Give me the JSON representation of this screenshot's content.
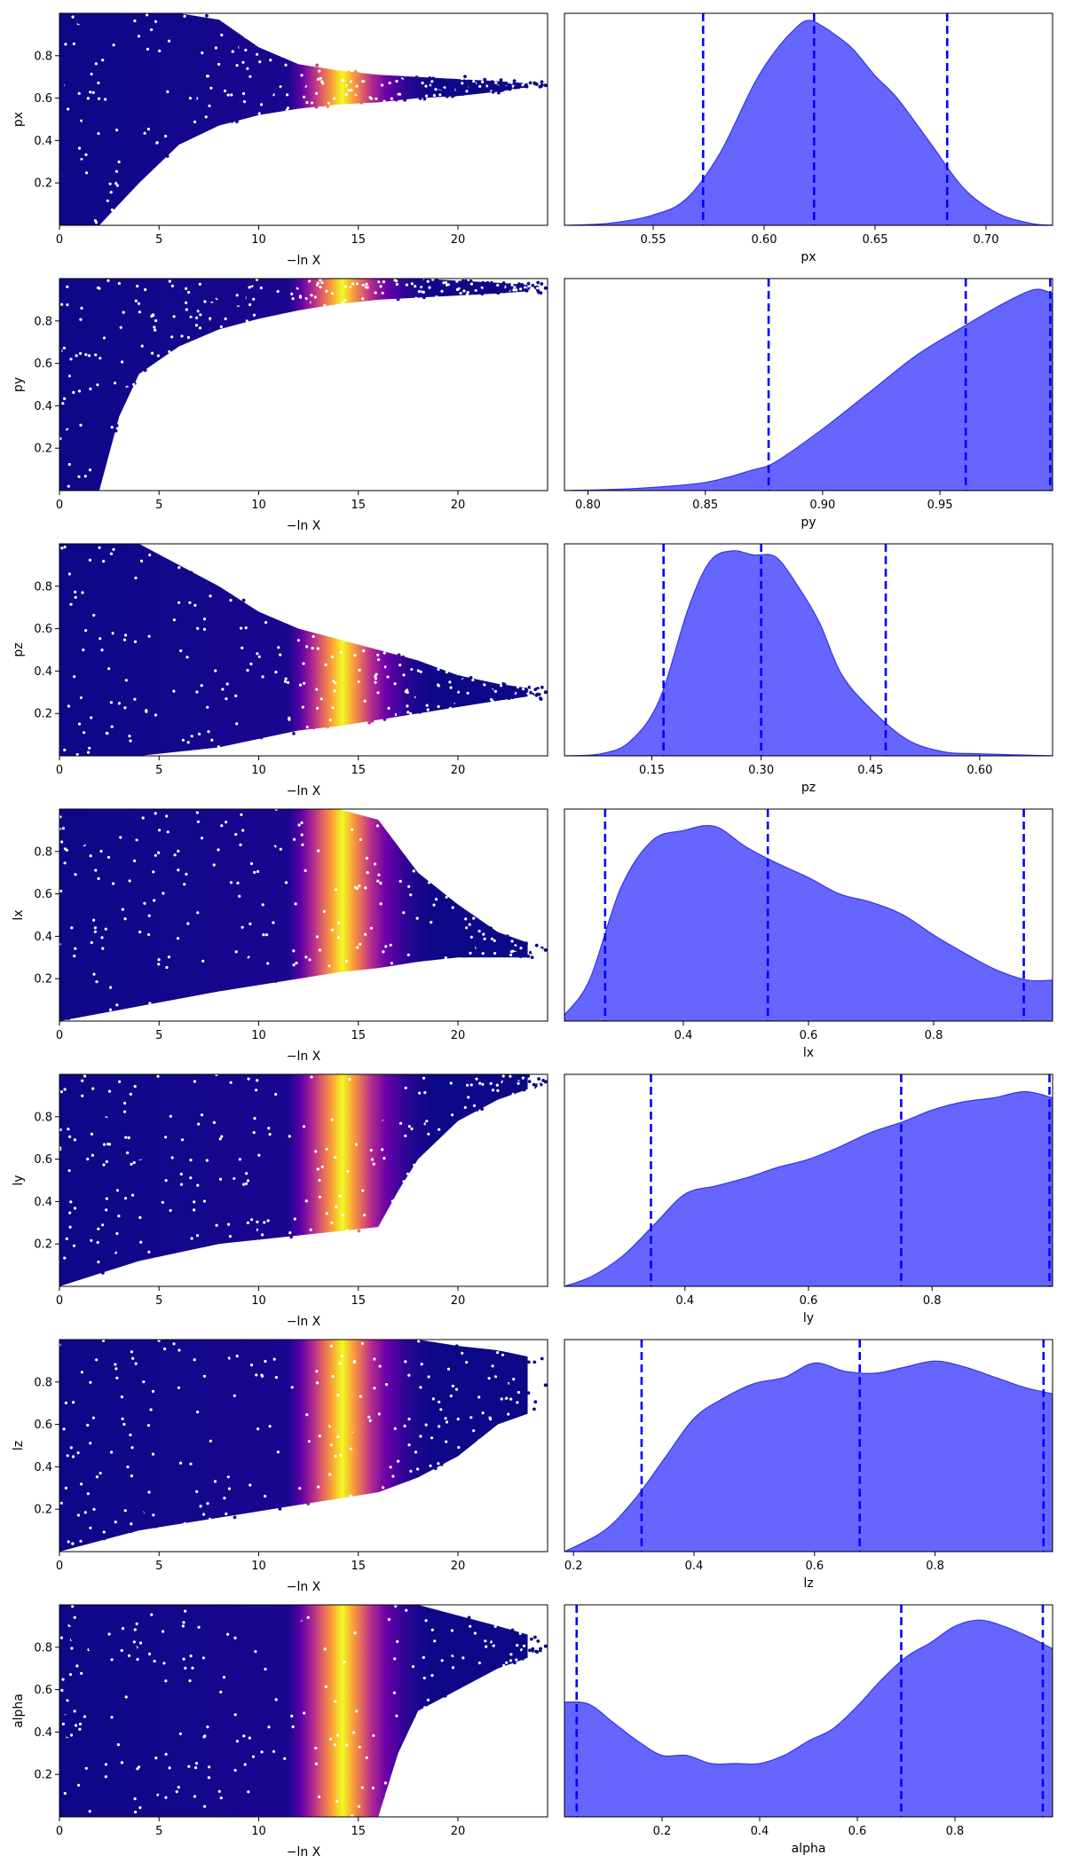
{
  "chart_data": [
    {
      "type": "scatter",
      "param": "px",
      "trace": {
        "xlabel": "−ln X",
        "ylabel": "px",
        "xlim": [
          0,
          24.5
        ],
        "ylim": [
          0,
          1
        ],
        "xticks": [
          0,
          5,
          10,
          15,
          20
        ],
        "yticks": [
          0.2,
          0.4,
          0.6,
          0.8
        ],
        "envelope": [
          [
            0,
            0.0,
            1.0
          ],
          [
            2,
            0.0,
            1.0
          ],
          [
            4,
            0.2,
            1.0
          ],
          [
            6,
            0.38,
            1.0
          ],
          [
            8,
            0.47,
            0.97
          ],
          [
            10,
            0.52,
            0.84
          ],
          [
            12,
            0.55,
            0.76
          ],
          [
            14,
            0.57,
            0.73
          ],
          [
            16,
            0.58,
            0.71
          ],
          [
            18,
            0.6,
            0.7
          ],
          [
            20,
            0.61,
            0.69
          ],
          [
            22,
            0.63,
            0.68
          ],
          [
            23.5,
            0.65,
            0.67
          ]
        ],
        "colormap": "plasma",
        "peak_x": 14.2,
        "max_x": 24.4
      },
      "marginal": {
        "type": "area",
        "xlabel": "px",
        "xlim": [
          0.51,
          0.73
        ],
        "xticks": [
          0.55,
          0.6,
          0.65,
          0.7
        ],
        "xtick_labels": [
          "0.55",
          "0.60",
          "0.65",
          "0.70"
        ],
        "density": [
          [
            0.51,
            0.0
          ],
          [
            0.53,
            0.01
          ],
          [
            0.55,
            0.05
          ],
          [
            0.565,
            0.13
          ],
          [
            0.58,
            0.35
          ],
          [
            0.595,
            0.68
          ],
          [
            0.605,
            0.85
          ],
          [
            0.615,
            0.97
          ],
          [
            0.62,
            1.0
          ],
          [
            0.625,
            0.98
          ],
          [
            0.632,
            0.93
          ],
          [
            0.64,
            0.86
          ],
          [
            0.65,
            0.73
          ],
          [
            0.66,
            0.62
          ],
          [
            0.675,
            0.4
          ],
          [
            0.69,
            0.18
          ],
          [
            0.705,
            0.06
          ],
          [
            0.72,
            0.01
          ],
          [
            0.73,
            0.0
          ]
        ],
        "quantiles": [
          0.5725,
          0.6225,
          0.6825
        ]
      }
    },
    {
      "type": "scatter",
      "param": "py",
      "trace": {
        "xlabel": "−ln X",
        "ylabel": "py",
        "xlim": [
          0,
          24.5
        ],
        "ylim": [
          0,
          1
        ],
        "xticks": [
          0,
          5,
          10,
          15,
          20
        ],
        "yticks": [
          0.2,
          0.4,
          0.6,
          0.8
        ],
        "envelope": [
          [
            0,
            0.0,
            1.0
          ],
          [
            2,
            0.0,
            1.0
          ],
          [
            3,
            0.35,
            1.0
          ],
          [
            4,
            0.55,
            1.0
          ],
          [
            6,
            0.68,
            1.0
          ],
          [
            8,
            0.76,
            1.0
          ],
          [
            10,
            0.81,
            1.0
          ],
          [
            12,
            0.85,
            1.0
          ],
          [
            14,
            0.88,
            1.0
          ],
          [
            16,
            0.9,
            1.0
          ],
          [
            18,
            0.91,
            1.0
          ],
          [
            20,
            0.92,
            0.99
          ],
          [
            22,
            0.93,
            0.98
          ],
          [
            23.5,
            0.94,
            0.97
          ]
        ],
        "colormap": "plasma",
        "peak_x": 14.2,
        "max_x": 24.4
      },
      "marginal": {
        "type": "area",
        "xlabel": "py",
        "xlim": [
          0.79,
          0.998
        ],
        "xticks": [
          0.8,
          0.85,
          0.9,
          0.95
        ],
        "xtick_labels": [
          "0.80",
          "0.85",
          "0.90",
          "0.95"
        ],
        "density": [
          [
            0.79,
            0.0
          ],
          [
            0.82,
            0.01
          ],
          [
            0.85,
            0.04
          ],
          [
            0.87,
            0.1
          ],
          [
            0.88,
            0.14
          ],
          [
            0.9,
            0.3
          ],
          [
            0.92,
            0.48
          ],
          [
            0.94,
            0.66
          ],
          [
            0.96,
            0.8
          ],
          [
            0.975,
            0.9
          ],
          [
            0.99,
            0.98
          ],
          [
            0.998,
            0.96
          ]
        ],
        "quantiles": [
          0.877,
          0.961,
          0.997
        ]
      }
    },
    {
      "type": "scatter",
      "param": "pz",
      "trace": {
        "xlabel": "−ln X",
        "ylabel": "pz",
        "xlim": [
          0,
          24.5
        ],
        "ylim": [
          0,
          1
        ],
        "xticks": [
          0,
          5,
          10,
          15,
          20
        ],
        "yticks": [
          0.2,
          0.4,
          0.6,
          0.8
        ],
        "envelope": [
          [
            0,
            0.0,
            1.0
          ],
          [
            4,
            0.0,
            1.0
          ],
          [
            8,
            0.04,
            0.8
          ],
          [
            10,
            0.08,
            0.68
          ],
          [
            12,
            0.12,
            0.6
          ],
          [
            14,
            0.14,
            0.55
          ],
          [
            16,
            0.17,
            0.5
          ],
          [
            18,
            0.2,
            0.45
          ],
          [
            20,
            0.23,
            0.38
          ],
          [
            22,
            0.26,
            0.34
          ],
          [
            23.5,
            0.28,
            0.32
          ]
        ],
        "colormap": "plasma",
        "peak_x": 14.2,
        "max_x": 24.4
      },
      "marginal": {
        "type": "area",
        "xlabel": "pz",
        "xlim": [
          0.03,
          0.7
        ],
        "xticks": [
          0.15,
          0.3,
          0.45,
          0.6
        ],
        "xtick_labels": [
          "0.15",
          "0.30",
          "0.45",
          "0.60"
        ],
        "density": [
          [
            0.03,
            0.0
          ],
          [
            0.08,
            0.01
          ],
          [
            0.12,
            0.07
          ],
          [
            0.16,
            0.27
          ],
          [
            0.2,
            0.72
          ],
          [
            0.23,
            0.95
          ],
          [
            0.26,
            1.0
          ],
          [
            0.29,
            0.98
          ],
          [
            0.32,
            0.97
          ],
          [
            0.35,
            0.83
          ],
          [
            0.38,
            0.65
          ],
          [
            0.41,
            0.4
          ],
          [
            0.45,
            0.23
          ],
          [
            0.5,
            0.08
          ],
          [
            0.55,
            0.02
          ],
          [
            0.6,
            0.01
          ],
          [
            0.7,
            0.0
          ]
        ],
        "quantiles": [
          0.166,
          0.3,
          0.471
        ]
      }
    },
    {
      "type": "scatter",
      "param": "lx",
      "trace": {
        "xlabel": "−ln X",
        "ylabel": "lx",
        "xlim": [
          0,
          24.5
        ],
        "ylim": [
          0,
          1
        ],
        "xticks": [
          0,
          5,
          10,
          15,
          20
        ],
        "yticks": [
          0.2,
          0.4,
          0.6,
          0.8
        ],
        "envelope": [
          [
            0,
            0.0,
            1.0
          ],
          [
            4,
            0.07,
            1.0
          ],
          [
            8,
            0.14,
            1.0
          ],
          [
            12,
            0.2,
            1.0
          ],
          [
            14,
            0.23,
            1.0
          ],
          [
            16,
            0.25,
            0.95
          ],
          [
            18,
            0.28,
            0.7
          ],
          [
            20,
            0.3,
            0.55
          ],
          [
            22,
            0.3,
            0.42
          ],
          [
            23.5,
            0.3,
            0.37
          ]
        ],
        "colormap": "plasma",
        "peak_x": 14.2,
        "max_x": 24.4
      },
      "marginal": {
        "type": "area",
        "xlabel": "lx",
        "xlim": [
          0.21,
          0.99
        ],
        "xticks": [
          0.4,
          0.6,
          0.8
        ],
        "xtick_labels": [
          "0.4",
          "0.6",
          "0.8"
        ],
        "density": [
          [
            0.21,
            0.03
          ],
          [
            0.25,
            0.2
          ],
          [
            0.3,
            0.65
          ],
          [
            0.35,
            0.88
          ],
          [
            0.4,
            0.93
          ],
          [
            0.45,
            0.95
          ],
          [
            0.5,
            0.85
          ],
          [
            0.55,
            0.77
          ],
          [
            0.6,
            0.7
          ],
          [
            0.65,
            0.62
          ],
          [
            0.7,
            0.58
          ],
          [
            0.75,
            0.52
          ],
          [
            0.8,
            0.42
          ],
          [
            0.85,
            0.33
          ],
          [
            0.9,
            0.25
          ],
          [
            0.95,
            0.2
          ],
          [
            0.99,
            0.2
          ]
        ],
        "quantiles": [
          0.275,
          0.535,
          0.944
        ]
      }
    },
    {
      "type": "scatter",
      "param": "ly",
      "trace": {
        "xlabel": "−ln X",
        "ylabel": "ly",
        "xlim": [
          0,
          24.5
        ],
        "ylim": [
          0,
          1
        ],
        "xticks": [
          0,
          5,
          10,
          15,
          20
        ],
        "yticks": [
          0.2,
          0.4,
          0.6,
          0.8
        ],
        "envelope": [
          [
            0,
            0.0,
            1.0
          ],
          [
            4,
            0.12,
            1.0
          ],
          [
            8,
            0.2,
            1.0
          ],
          [
            12,
            0.24,
            1.0
          ],
          [
            16,
            0.28,
            1.0
          ],
          [
            17,
            0.45,
            1.0
          ],
          [
            18,
            0.6,
            1.0
          ],
          [
            20,
            0.78,
            1.0
          ],
          [
            22,
            0.88,
            1.0
          ],
          [
            23.5,
            0.93,
            1.0
          ]
        ],
        "colormap": "plasma",
        "peak_x": 14.2,
        "max_x": 24.4
      },
      "marginal": {
        "type": "area",
        "xlabel": "ly",
        "xlim": [
          0.205,
          0.995
        ],
        "xticks": [
          0.4,
          0.6,
          0.8
        ],
        "xtick_labels": [
          "0.4",
          "0.6",
          "0.8"
        ],
        "density": [
          [
            0.205,
            0.0
          ],
          [
            0.25,
            0.05
          ],
          [
            0.3,
            0.15
          ],
          [
            0.35,
            0.3
          ],
          [
            0.4,
            0.45
          ],
          [
            0.45,
            0.49
          ],
          [
            0.5,
            0.53
          ],
          [
            0.55,
            0.58
          ],
          [
            0.6,
            0.62
          ],
          [
            0.65,
            0.68
          ],
          [
            0.7,
            0.75
          ],
          [
            0.75,
            0.8
          ],
          [
            0.8,
            0.86
          ],
          [
            0.85,
            0.9
          ],
          [
            0.9,
            0.92
          ],
          [
            0.95,
            0.95
          ],
          [
            0.995,
            0.92
          ]
        ],
        "quantiles": [
          0.345,
          0.75,
          0.99
        ]
      }
    },
    {
      "type": "scatter",
      "param": "lz",
      "trace": {
        "xlabel": "−ln X",
        "ylabel": "lz",
        "xlim": [
          0,
          24.5
        ],
        "ylim": [
          0,
          1
        ],
        "xticks": [
          0,
          5,
          10,
          15,
          20
        ],
        "yticks": [
          0.2,
          0.4,
          0.6,
          0.8
        ],
        "envelope": [
          [
            0,
            0.0,
            1.0
          ],
          [
            4,
            0.1,
            1.0
          ],
          [
            8,
            0.16,
            1.0
          ],
          [
            12,
            0.22,
            1.0
          ],
          [
            16,
            0.28,
            1.0
          ],
          [
            18,
            0.35,
            1.0
          ],
          [
            20,
            0.45,
            0.97
          ],
          [
            22,
            0.6,
            0.95
          ],
          [
            23.5,
            0.65,
            0.92
          ]
        ],
        "colormap": "plasma",
        "peak_x": 14.2,
        "max_x": 24.4
      },
      "marginal": {
        "type": "area",
        "xlabel": "lz",
        "xlim": [
          0.185,
          0.995
        ],
        "xticks": [
          0.2,
          0.4,
          0.6,
          0.8
        ],
        "xtick_labels": [
          "0.2",
          "0.4",
          "0.6",
          "0.8"
        ],
        "density": [
          [
            0.185,
            0.0
          ],
          [
            0.25,
            0.1
          ],
          [
            0.3,
            0.25
          ],
          [
            0.35,
            0.45
          ],
          [
            0.4,
            0.65
          ],
          [
            0.45,
            0.75
          ],
          [
            0.5,
            0.82
          ],
          [
            0.55,
            0.85
          ],
          [
            0.6,
            0.92
          ],
          [
            0.65,
            0.88
          ],
          [
            0.7,
            0.87
          ],
          [
            0.75,
            0.9
          ],
          [
            0.8,
            0.93
          ],
          [
            0.85,
            0.9
          ],
          [
            0.9,
            0.85
          ],
          [
            0.95,
            0.8
          ],
          [
            0.995,
            0.77
          ]
        ],
        "quantiles": [
          0.313,
          0.675,
          0.98
        ]
      }
    },
    {
      "type": "scatter",
      "param": "alpha",
      "trace": {
        "xlabel": "−ln X",
        "ylabel": "alpha",
        "xlim": [
          0,
          24.5
        ],
        "ylim": [
          0,
          1
        ],
        "xticks": [
          0,
          5,
          10,
          15,
          20
        ],
        "yticks": [
          0.2,
          0.4,
          0.6,
          0.8
        ],
        "envelope": [
          [
            0,
            0.0,
            1.0
          ],
          [
            12,
            0.0,
            1.0
          ],
          [
            16,
            0.0,
            1.0
          ],
          [
            17,
            0.3,
            1.0
          ],
          [
            18,
            0.5,
            1.0
          ],
          [
            20,
            0.6,
            0.95
          ],
          [
            22,
            0.7,
            0.9
          ],
          [
            23.5,
            0.75,
            0.86
          ]
        ],
        "colormap": "plasma",
        "peak_x": 14.2,
        "max_x": 24.4
      },
      "marginal": {
        "type": "area",
        "xlabel": "alpha",
        "xlim": [
          0.0,
          1.0
        ],
        "xticks": [
          0.2,
          0.4,
          0.6,
          0.8
        ],
        "xtick_labels": [
          "0.2",
          "0.4",
          "0.6",
          "0.8"
        ],
        "density": [
          [
            0.0,
            0.56
          ],
          [
            0.05,
            0.55
          ],
          [
            0.1,
            0.46
          ],
          [
            0.15,
            0.37
          ],
          [
            0.2,
            0.3
          ],
          [
            0.25,
            0.3
          ],
          [
            0.3,
            0.26
          ],
          [
            0.35,
            0.26
          ],
          [
            0.4,
            0.26
          ],
          [
            0.45,
            0.3
          ],
          [
            0.5,
            0.37
          ],
          [
            0.55,
            0.43
          ],
          [
            0.6,
            0.54
          ],
          [
            0.65,
            0.67
          ],
          [
            0.7,
            0.78
          ],
          [
            0.75,
            0.85
          ],
          [
            0.8,
            0.93
          ],
          [
            0.85,
            0.96
          ],
          [
            0.9,
            0.93
          ],
          [
            0.95,
            0.88
          ],
          [
            1.0,
            0.82
          ]
        ],
        "quantiles": [
          0.025,
          0.69,
          0.98
        ]
      }
    }
  ]
}
